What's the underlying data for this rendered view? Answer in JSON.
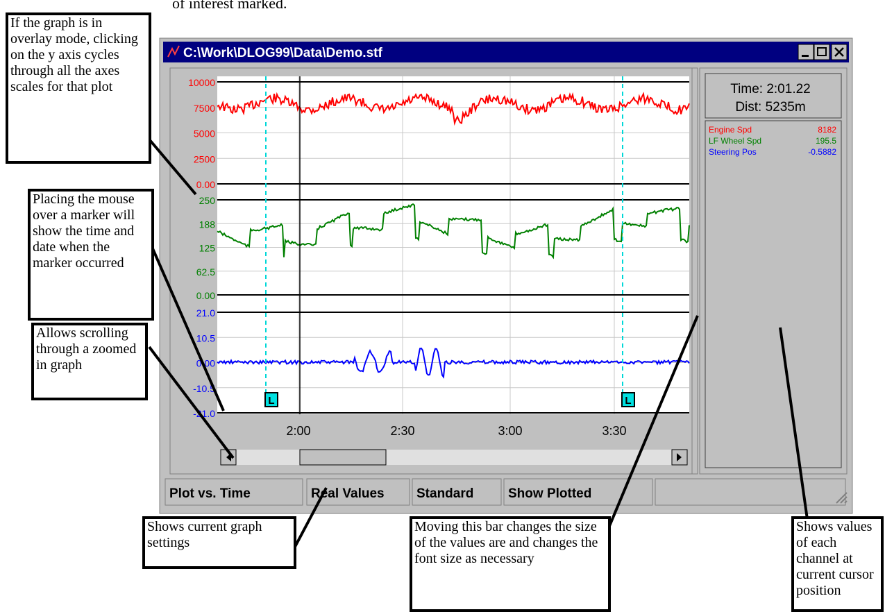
{
  "top_text": "of interest marked.",
  "window": {
    "title": "C:\\Work\\DLOG99\\Data\\Demo.stf",
    "plots": [
      {
        "color": "#ff0000",
        "y_labels": [
          "10000",
          "7500",
          "5000",
          "2500",
          "0.00"
        ]
      },
      {
        "color": "#008000",
        "y_labels": [
          "250",
          "188",
          "125",
          "62.5",
          "0.00"
        ]
      },
      {
        "color": "#0000ff",
        "y_labels": [
          "21.0",
          "10.5",
          "0.00",
          "-10.5",
          "-21.0"
        ]
      }
    ],
    "x_labels": [
      "2:00",
      "2:30",
      "3:00",
      "3:30"
    ],
    "marker_label": "L",
    "readout": {
      "time": "Time: 2:01.22",
      "dist": "Dist: 5235m",
      "channels": [
        {
          "name": "Engine Spd",
          "value": "8182",
          "color": "#ff0000"
        },
        {
          "name": "LF Wheel Spd",
          "value": "195.5",
          "color": "#008000"
        },
        {
          "name": "Steering Pos",
          "value": "-0.5882",
          "color": "#0000ff"
        }
      ]
    },
    "status": [
      "Plot vs. Time",
      "Real Values",
      "Standard",
      "Show Plotted",
      ""
    ]
  },
  "callouts": [
    "If the graph is in overlay mode, clicking on the y axis cycles through all the axes scales for that plot",
    "Placing the mouse over a marker will show the time and date when the marker occurred",
    "Allows scrolling through a zoomed in graph",
    "Shows current graph settings",
    "Moving this bar changes the size of the values are and changes the font size as necessary",
    "Shows values of each channel at current cursor position"
  ]
}
